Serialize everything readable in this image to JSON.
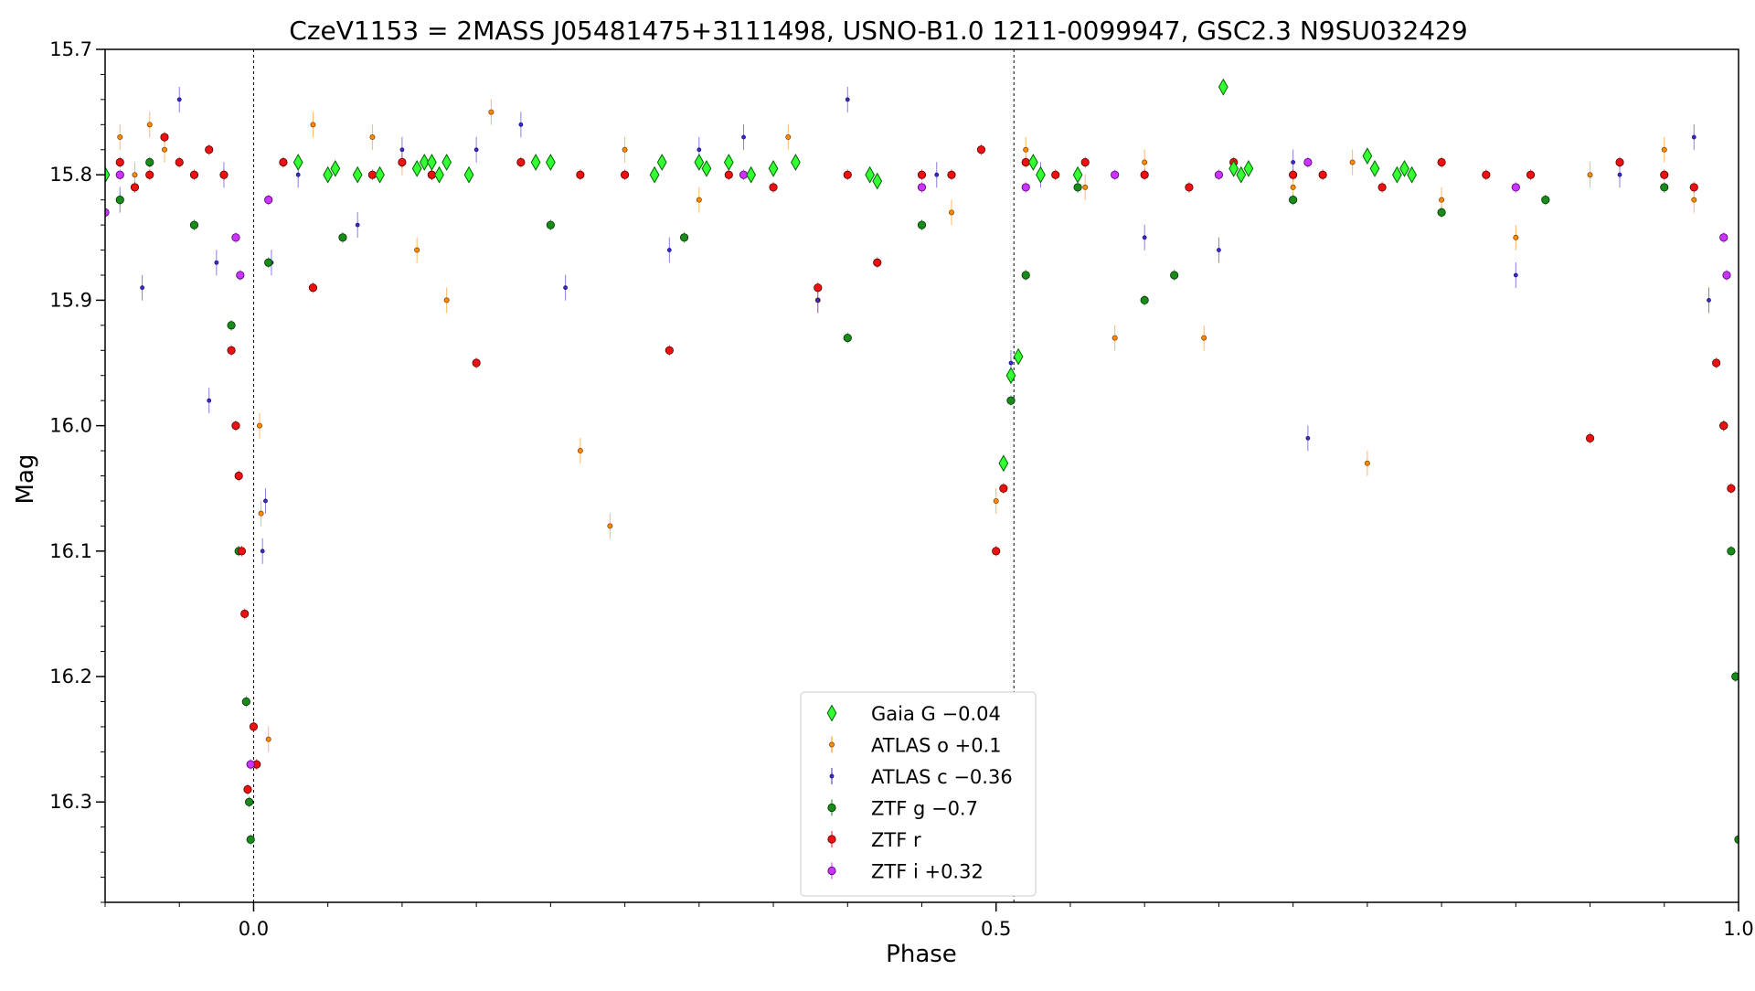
{
  "chart_data": {
    "type": "scatter",
    "title": "CzeV1153 = 2MASS J05481475+3111498, USNO-B1.0 1211-0099947, GSC2.3 N9SU032429",
    "xlabel": "Phase",
    "ylabel": "Mag",
    "xlim": [
      -0.1,
      1.0
    ],
    "ylim": [
      16.38,
      15.7
    ],
    "y_inverted": true,
    "xticks": [
      0.0,
      0.5,
      1.0
    ],
    "xtick_labels": [
      "0.0",
      "0.5",
      "1.0"
    ],
    "yticks": [
      15.7,
      15.8,
      15.9,
      16.0,
      16.1,
      16.2,
      16.3
    ],
    "ytick_labels": [
      "15.7",
      "15.8",
      "15.9",
      "16.0",
      "16.1",
      "16.2",
      "16.3"
    ],
    "vertical_lines": [
      0.0,
      0.512
    ],
    "legend_position": "lower center",
    "series": [
      {
        "name": "Gaia G −0.04",
        "marker": "diamond",
        "color": "#33ff33",
        "edge": "#006400",
        "x": [
          -0.1,
          0.03,
          0.05,
          0.055,
          0.07,
          0.085,
          0.11,
          0.115,
          0.12,
          0.125,
          0.13,
          0.145,
          0.19,
          0.2,
          0.27,
          0.275,
          0.3,
          0.305,
          0.32,
          0.335,
          0.35,
          0.365,
          0.415,
          0.42,
          0.505,
          0.51,
          0.515,
          0.525,
          0.53,
          0.555,
          0.653,
          0.66,
          0.665,
          0.67,
          0.75,
          0.755,
          0.77,
          0.775,
          0.78
        ],
        "y": [
          15.8,
          15.79,
          15.8,
          15.795,
          15.8,
          15.8,
          15.795,
          15.79,
          15.79,
          15.8,
          15.79,
          15.8,
          15.79,
          15.79,
          15.8,
          15.79,
          15.79,
          15.795,
          15.79,
          15.8,
          15.795,
          15.79,
          15.8,
          15.805,
          16.03,
          15.96,
          15.945,
          15.79,
          15.8,
          15.8,
          15.73,
          15.795,
          15.8,
          15.795,
          15.785,
          15.795,
          15.8,
          15.795,
          15.8
        ]
      },
      {
        "name": "ATLAS o +0.1",
        "marker": "circle-small",
        "color": "#ff8c00",
        "edge": "#8b4500",
        "x": [
          -0.09,
          -0.08,
          -0.07,
          -0.06,
          0.004,
          0.005,
          0.01,
          0.04,
          0.08,
          0.1,
          0.11,
          0.13,
          0.16,
          0.22,
          0.24,
          0.25,
          0.3,
          0.36,
          0.38,
          0.47,
          0.5,
          0.52,
          0.56,
          0.58,
          0.6,
          0.64,
          0.7,
          0.74,
          0.75,
          0.8,
          0.85,
          0.9,
          0.95,
          0.97
        ],
        "y": [
          15.77,
          15.8,
          15.76,
          15.78,
          16.0,
          16.07,
          16.25,
          15.76,
          15.77,
          15.79,
          15.86,
          15.9,
          15.75,
          16.02,
          16.08,
          15.78,
          15.82,
          15.77,
          15.9,
          15.83,
          16.06,
          15.78,
          15.81,
          15.93,
          15.79,
          15.93,
          15.81,
          15.79,
          16.03,
          15.82,
          15.85,
          15.8,
          15.78,
          15.82
        ]
      },
      {
        "name": "ATLAS c −0.36",
        "marker": "circle-tiny",
        "color": "#3b2bd1",
        "edge": "#1a1470",
        "x": [
          -0.09,
          -0.075,
          -0.05,
          -0.03,
          -0.025,
          -0.02,
          0.006,
          0.008,
          0.012,
          0.03,
          0.07,
          0.1,
          0.15,
          0.18,
          0.21,
          0.28,
          0.3,
          0.33,
          0.38,
          0.4,
          0.46,
          0.51,
          0.53,
          0.6,
          0.65,
          0.7,
          0.71,
          0.85,
          0.92,
          0.97,
          0.98
        ],
        "y": [
          15.82,
          15.89,
          15.74,
          15.98,
          15.87,
          15.8,
          16.1,
          16.06,
          15.87,
          15.8,
          15.84,
          15.78,
          15.78,
          15.76,
          15.89,
          15.86,
          15.78,
          15.77,
          15.9,
          15.74,
          15.8,
          15.95,
          15.8,
          15.85,
          15.86,
          15.79,
          16.01,
          15.88,
          15.8,
          15.77,
          15.9
        ]
      },
      {
        "name": "ZTF g −0.7",
        "marker": "circle",
        "color": "#1a8a1a",
        "edge": "#003300",
        "x": [
          -0.09,
          -0.07,
          -0.04,
          -0.015,
          -0.01,
          -0.005,
          -0.003,
          -0.002,
          0.01,
          0.06,
          0.12,
          0.2,
          0.29,
          0.4,
          0.45,
          0.51,
          0.52,
          0.555,
          0.6,
          0.62,
          0.7,
          0.8,
          0.87,
          0.95,
          0.99,
          0.995,
          0.998,
          1.0
        ],
        "y": [
          15.82,
          15.79,
          15.84,
          15.92,
          16.1,
          16.22,
          16.3,
          16.33,
          15.87,
          15.85,
          15.8,
          15.84,
          15.85,
          15.93,
          15.84,
          15.98,
          15.88,
          15.81,
          15.9,
          15.88,
          15.82,
          15.83,
          15.82,
          15.81,
          16.0,
          16.1,
          16.2,
          16.33
        ]
      },
      {
        "name": "ZTF r",
        "marker": "circle",
        "color": "#ee1111",
        "edge": "#550000",
        "x": [
          -0.1,
          -0.09,
          -0.08,
          -0.07,
          -0.06,
          -0.05,
          -0.04,
          -0.03,
          -0.02,
          -0.015,
          -0.012,
          -0.01,
          -0.008,
          -0.006,
          -0.004,
          0.0,
          0.002,
          0.02,
          0.03,
          0.04,
          0.05,
          0.08,
          0.1,
          0.12,
          0.15,
          0.18,
          0.22,
          0.25,
          0.28,
          0.3,
          0.32,
          0.35,
          0.38,
          0.4,
          0.42,
          0.45,
          0.47,
          0.49,
          0.5,
          0.505,
          0.52,
          0.54,
          0.56,
          0.6,
          0.63,
          0.66,
          0.7,
          0.72,
          0.76,
          0.8,
          0.83,
          0.86,
          0.9,
          0.92,
          0.95,
          0.97,
          0.985,
          0.99,
          0.995
        ],
        "y": [
          15.8,
          15.79,
          15.81,
          15.8,
          15.77,
          15.79,
          15.8,
          15.78,
          15.8,
          15.94,
          16.0,
          16.04,
          16.1,
          16.15,
          16.29,
          16.24,
          16.27,
          15.79,
          15.79,
          15.89,
          15.8,
          15.8,
          15.79,
          15.8,
          15.95,
          15.79,
          15.8,
          15.8,
          15.94,
          15.79,
          15.8,
          15.81,
          15.89,
          15.8,
          15.87,
          15.8,
          15.8,
          15.78,
          16.1,
          16.05,
          15.79,
          15.8,
          15.79,
          15.8,
          15.81,
          15.79,
          15.8,
          15.8,
          15.81,
          15.79,
          15.8,
          15.8,
          16.01,
          15.79,
          15.8,
          15.81,
          15.95,
          16.0,
          16.05
        ]
      },
      {
        "name": "ZTF i +0.32",
        "marker": "circle",
        "color": "#cc33ff",
        "edge": "#4b0066",
        "x": [
          -0.1,
          -0.09,
          -0.012,
          -0.009,
          -0.002,
          0.01,
          0.3,
          0.33,
          0.45,
          0.52,
          0.58,
          0.65,
          0.71,
          0.77,
          0.85,
          0.99,
          0.992
        ],
        "y": [
          15.83,
          15.8,
          15.85,
          15.88,
          16.27,
          15.82,
          15.79,
          15.8,
          15.81,
          15.81,
          15.8,
          15.8,
          15.79,
          15.8,
          15.81,
          15.85,
          15.88
        ]
      }
    ]
  }
}
